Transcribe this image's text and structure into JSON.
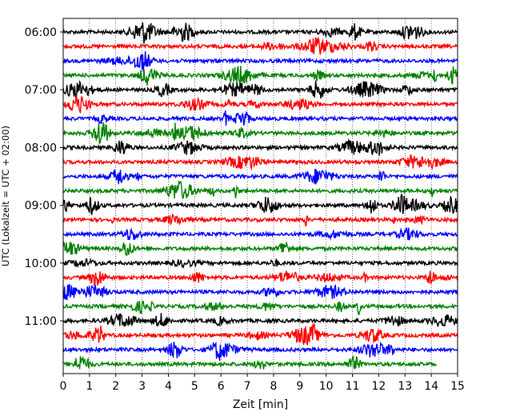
{
  "chart_data": {
    "type": "line",
    "title": "",
    "xlabel": "Zeit  [min]",
    "ylabel": "UTC (Lokalzeit = UTC + 02:00)",
    "xlim": [
      0,
      15
    ],
    "x_ticks": [
      "0",
      "1",
      "2",
      "3",
      "4",
      "5",
      "6",
      "7",
      "8",
      "9",
      "10",
      "11",
      "12",
      "13",
      "14",
      "15"
    ],
    "y_ticks": [
      "06:00",
      "07:00",
      "08:00",
      "09:00",
      "10:00",
      "11:00"
    ],
    "y_tick_rows": [
      0,
      4,
      8,
      12,
      16,
      20
    ],
    "grid": "vertical-dotted",
    "row_interval_minutes": 15,
    "trace_colors": [
      "#000000",
      "#ff0000",
      "#0000ff",
      "#008000"
    ],
    "rows": [
      {
        "start": "06:00",
        "color": "#000000"
      },
      {
        "start": "06:15",
        "color": "#ff0000"
      },
      {
        "start": "06:30",
        "color": "#0000ff"
      },
      {
        "start": "06:45",
        "color": "#008000"
      },
      {
        "start": "07:00",
        "color": "#000000"
      },
      {
        "start": "07:15",
        "color": "#ff0000"
      },
      {
        "start": "07:30",
        "color": "#0000ff"
      },
      {
        "start": "07:45",
        "color": "#008000"
      },
      {
        "start": "08:00",
        "color": "#000000"
      },
      {
        "start": "08:15",
        "color": "#ff0000"
      },
      {
        "start": "08:30",
        "color": "#0000ff"
      },
      {
        "start": "08:45",
        "color": "#008000"
      },
      {
        "start": "09:00",
        "color": "#000000"
      },
      {
        "start": "09:15",
        "color": "#ff0000"
      },
      {
        "start": "09:30",
        "color": "#0000ff"
      },
      {
        "start": "09:45",
        "color": "#008000"
      },
      {
        "start": "10:00",
        "color": "#000000"
      },
      {
        "start": "10:15",
        "color": "#ff0000"
      },
      {
        "start": "10:30",
        "color": "#0000ff"
      },
      {
        "start": "10:45",
        "color": "#008000"
      },
      {
        "start": "11:00",
        "color": "#000000"
      },
      {
        "start": "11:15",
        "color": "#ff0000"
      },
      {
        "start": "11:30",
        "color": "#0000ff"
      },
      {
        "start": "11:45",
        "color": "#008000",
        "end_minute": 14.2
      }
    ]
  }
}
